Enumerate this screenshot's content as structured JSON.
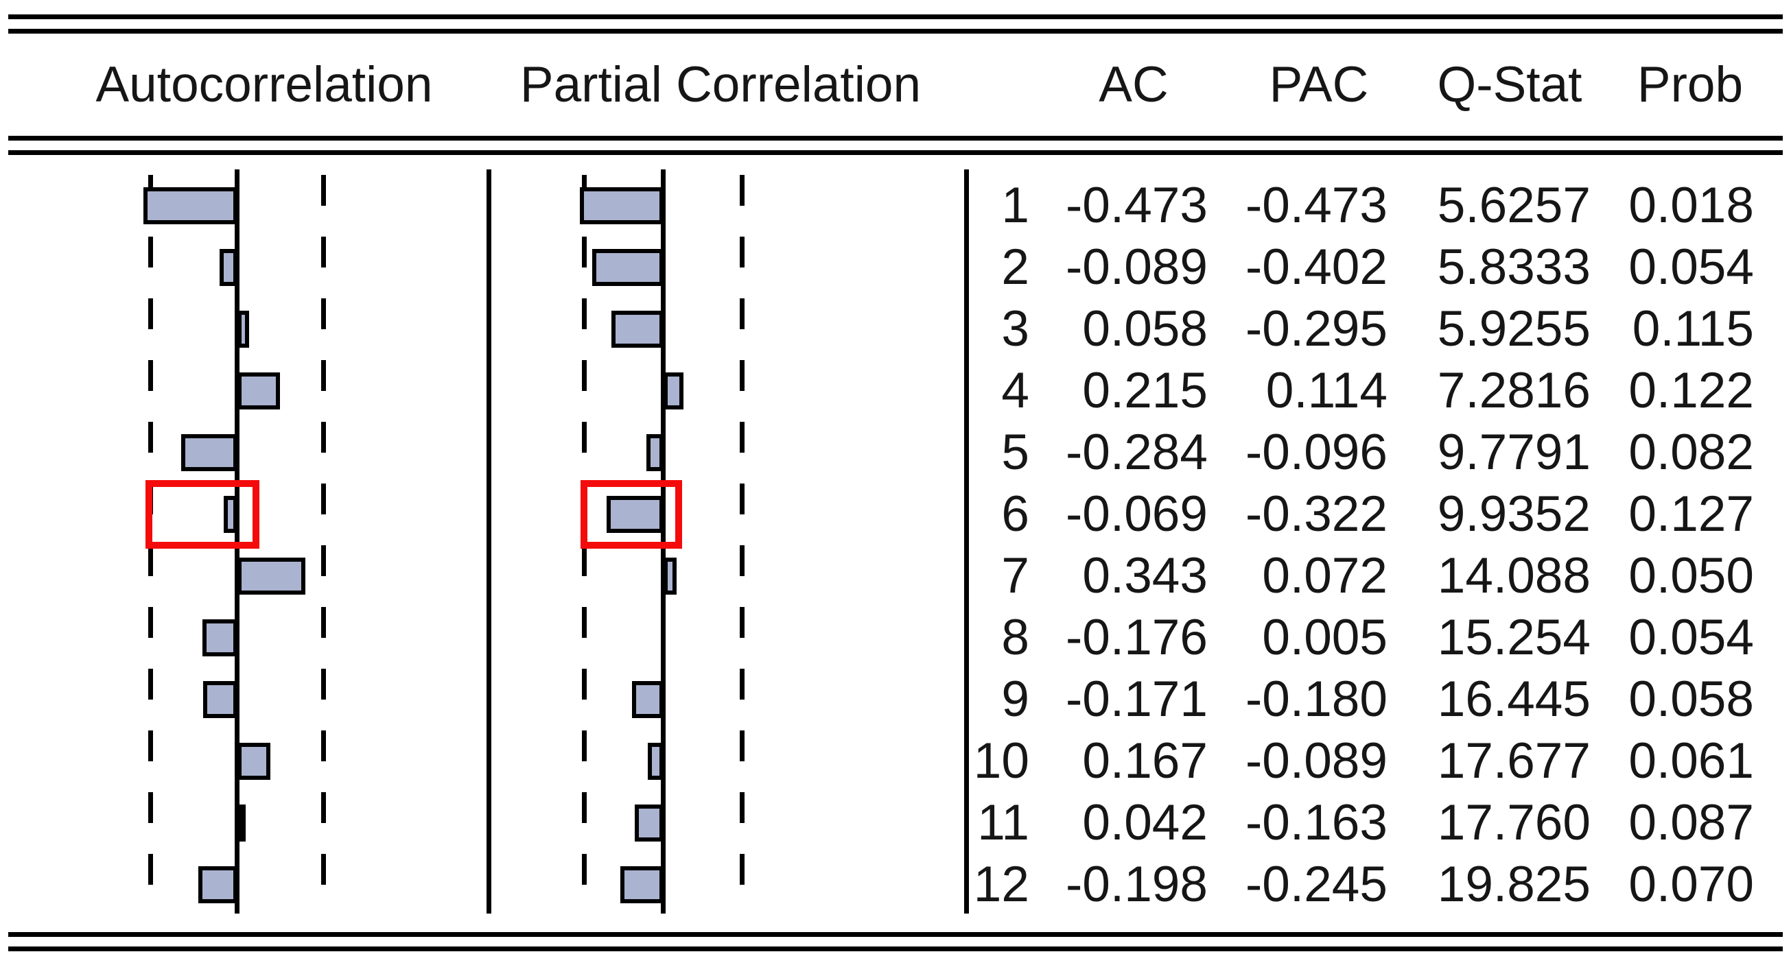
{
  "header": {
    "autocorrelation": "Autocorrelation",
    "partial_correlation": "Partial Correlation",
    "ac": "AC",
    "pac": "PAC",
    "qstat": "Q-Stat",
    "prob": "Prob"
  },
  "rows": [
    {
      "lag": "1",
      "ac": "-0.473",
      "pac": "-0.473",
      "qstat": "5.6257",
      "prob": "0.018"
    },
    {
      "lag": "2",
      "ac": "-0.089",
      "pac": "-0.402",
      "qstat": "5.8333",
      "prob": "0.054"
    },
    {
      "lag": "3",
      "ac": "0.058",
      "pac": "-0.295",
      "qstat": "5.9255",
      "prob": "0.115"
    },
    {
      "lag": "4",
      "ac": "0.215",
      "pac": "0.114",
      "qstat": "7.2816",
      "prob": "0.122"
    },
    {
      "lag": "5",
      "ac": "-0.284",
      "pac": "-0.096",
      "qstat": "9.7791",
      "prob": "0.082"
    },
    {
      "lag": "6",
      "ac": "-0.069",
      "pac": "-0.322",
      "qstat": "9.9352",
      "prob": "0.127"
    },
    {
      "lag": "7",
      "ac": "0.343",
      "pac": "0.072",
      "qstat": "14.088",
      "prob": "0.050"
    },
    {
      "lag": "8",
      "ac": "-0.176",
      "pac": "0.005",
      "qstat": "15.254",
      "prob": "0.054"
    },
    {
      "lag": "9",
      "ac": "-0.171",
      "pac": "-0.180",
      "qstat": "16.445",
      "prob": "0.058"
    },
    {
      "lag": "10",
      "ac": "0.167",
      "pac": "-0.089",
      "qstat": "17.677",
      "prob": "0.061"
    },
    {
      "lag": "11",
      "ac": "0.042",
      "pac": "-0.163",
      "qstat": "17.760",
      "prob": "0.087"
    },
    {
      "lag": "12",
      "ac": "-0.198",
      "pac": "-0.245",
      "qstat": "19.825",
      "prob": "0.070"
    }
  ],
  "chart_data": {
    "type": "bar",
    "title": "Correlogram",
    "orientation": "horizontal",
    "categories": [
      1,
      2,
      3,
      4,
      5,
      6,
      7,
      8,
      9,
      10,
      11,
      12
    ],
    "series": [
      {
        "name": "AC",
        "values": [
          -0.473,
          -0.089,
          0.058,
          0.215,
          -0.284,
          -0.069,
          0.343,
          -0.176,
          -0.171,
          0.167,
          0.042,
          -0.198
        ]
      },
      {
        "name": "PAC",
        "values": [
          -0.473,
          -0.402,
          -0.295,
          0.114,
          -0.096,
          -0.322,
          0.072,
          0.005,
          -0.18,
          -0.089,
          -0.163,
          -0.245
        ]
      }
    ],
    "qstat_values": [
      5.6257,
      5.8333,
      5.9255,
      7.2816,
      9.7791,
      9.9352,
      14.088,
      15.254,
      16.445,
      17.677,
      17.76,
      19.825
    ],
    "prob_values": [
      0.018,
      0.054,
      0.115,
      0.122,
      0.082,
      0.127,
      0.05,
      0.054,
      0.058,
      0.061,
      0.087,
      0.07
    ],
    "se_bound": 0.43,
    "highlighted_lag": 6,
    "xlim": [
      -1,
      1
    ],
    "grid": "dashed-se-bands",
    "legend_position": "none"
  },
  "colors": {
    "bar_fill": "#aab3cf",
    "bar_border": "#000000",
    "highlight": "#f40b0b",
    "rule": "#000000",
    "text": "#161616"
  }
}
